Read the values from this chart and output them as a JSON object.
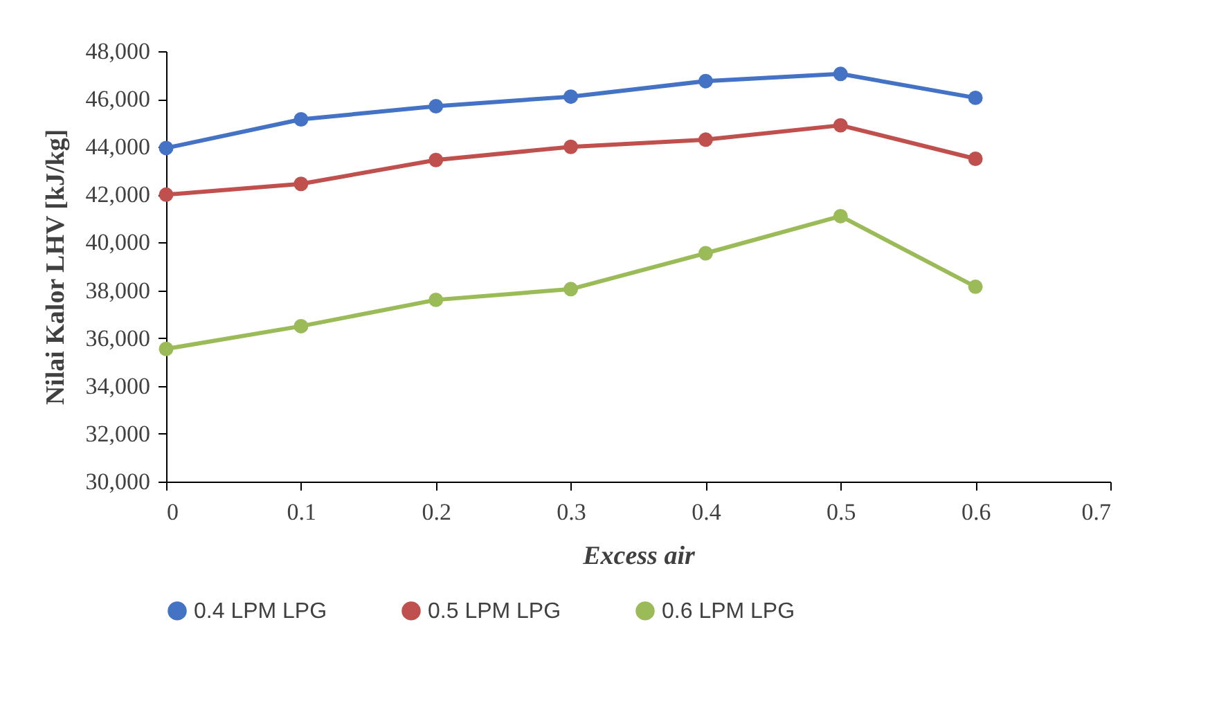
{
  "chart_data": {
    "type": "line",
    "xlabel": "Excess air",
    "ylabel": "Nilai Kalor LHV [kJ/kg]",
    "x": [
      0,
      0.1,
      0.2,
      0.3,
      0.4,
      0.5,
      0.6
    ],
    "series": [
      {
        "name": "0.4 LPM LPG",
        "color": "#4472c4",
        "values": [
          43950,
          45150,
          45700,
          46100,
          46750,
          47050,
          46050
        ]
      },
      {
        "name": "0.5 LPM LPG",
        "color": "#c0504d",
        "values": [
          42000,
          42450,
          43450,
          44000,
          44300,
          44900,
          43500
        ]
      },
      {
        "name": "0.6 LPM LPG",
        "color": "#9bbb59",
        "values": [
          35550,
          36500,
          37600,
          38050,
          39550,
          41100,
          38150
        ]
      }
    ],
    "xlim": [
      0,
      0.7
    ],
    "xticks": [
      0,
      0.1,
      0.2,
      0.3,
      0.4,
      0.5,
      0.6,
      0.7
    ],
    "ylim": [
      30000,
      48000
    ],
    "yticks": [
      {
        "value": 30000,
        "label": "30,000"
      },
      {
        "value": 32000,
        "label": "32,000"
      },
      {
        "value": 34000,
        "label": "34,000"
      },
      {
        "value": 36000,
        "label": "36,000"
      },
      {
        "value": 38000,
        "label": "38,000"
      },
      {
        "value": 40000,
        "label": "40,000"
      },
      {
        "value": 42000,
        "label": "42,000"
      },
      {
        "value": 44000,
        "label": "44,000"
      },
      {
        "value": 46000,
        "label": "46,000"
      },
      {
        "value": 48000,
        "label": "48,000"
      }
    ],
    "grid": false,
    "legend": "bottom",
    "marker": "circle",
    "line_style": "solid"
  }
}
